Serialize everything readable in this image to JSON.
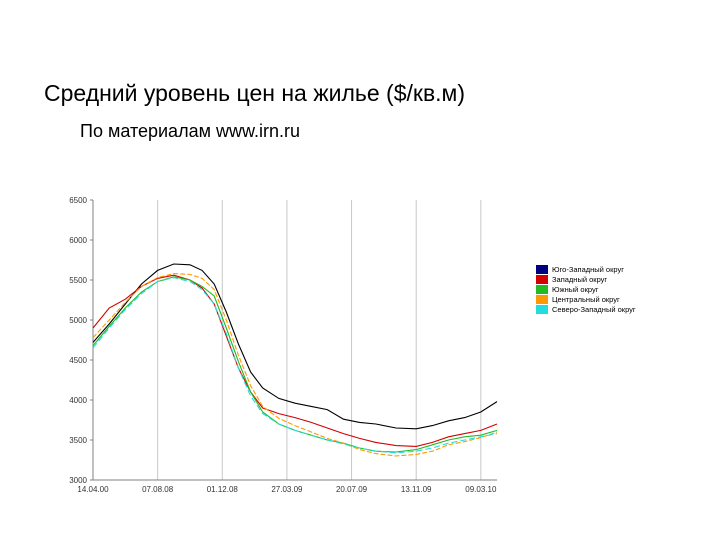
{
  "slide": {
    "title": "Средний уровень цен на жилье ($/кв.м)",
    "subtitle": "По материалам www.irn.ru"
  },
  "chart_data": {
    "type": "line",
    "title": "",
    "xlabel": "",
    "ylabel": "",
    "ylim": [
      3000,
      6500
    ],
    "yticks": [
      3000,
      3500,
      4000,
      4500,
      5000,
      5500,
      6000,
      6500
    ],
    "xlim": [
      0,
      100
    ],
    "xticks": [
      {
        "x": 0,
        "label": "14.04.00"
      },
      {
        "x": 16,
        "label": "07.08.08"
      },
      {
        "x": 32,
        "label": "01.12.08"
      },
      {
        "x": 48,
        "label": "27.03.09"
      },
      {
        "x": 64,
        "label": "20.07.09"
      },
      {
        "x": 80,
        "label": "13.11.09"
      },
      {
        "x": 96,
        "label": "09.03.10"
      }
    ],
    "grid": true,
    "legend_position": "right",
    "series": [
      {
        "name": "Юго-Западный округ",
        "color": "#000000",
        "points": [
          [
            0,
            4720
          ],
          [
            4,
            4950
          ],
          [
            8,
            5200
          ],
          [
            12,
            5450
          ],
          [
            16,
            5620
          ],
          [
            20,
            5700
          ],
          [
            24,
            5690
          ],
          [
            27,
            5620
          ],
          [
            30,
            5450
          ],
          [
            33,
            5100
          ],
          [
            36,
            4700
          ],
          [
            39,
            4350
          ],
          [
            42,
            4150
          ],
          [
            46,
            4020
          ],
          [
            50,
            3960
          ],
          [
            54,
            3920
          ],
          [
            58,
            3880
          ],
          [
            62,
            3760
          ],
          [
            66,
            3720
          ],
          [
            70,
            3700
          ],
          [
            75,
            3650
          ],
          [
            80,
            3640
          ],
          [
            84,
            3680
          ],
          [
            88,
            3740
          ],
          [
            92,
            3780
          ],
          [
            96,
            3850
          ],
          [
            100,
            3980
          ]
        ]
      },
      {
        "name": "Западный округ",
        "color": "#d40000",
        "points": [
          [
            0,
            4900
          ],
          [
            4,
            5150
          ],
          [
            8,
            5260
          ],
          [
            12,
            5420
          ],
          [
            16,
            5520
          ],
          [
            20,
            5560
          ],
          [
            24,
            5500
          ],
          [
            27,
            5400
          ],
          [
            30,
            5200
          ],
          [
            33,
            4800
          ],
          [
            36,
            4400
          ],
          [
            39,
            4100
          ],
          [
            42,
            3900
          ],
          [
            46,
            3830
          ],
          [
            50,
            3780
          ],
          [
            54,
            3720
          ],
          [
            58,
            3650
          ],
          [
            62,
            3580
          ],
          [
            66,
            3520
          ],
          [
            70,
            3470
          ],
          [
            75,
            3430
          ],
          [
            80,
            3420
          ],
          [
            84,
            3470
          ],
          [
            88,
            3540
          ],
          [
            92,
            3580
          ],
          [
            96,
            3620
          ],
          [
            100,
            3700
          ]
        ]
      },
      {
        "name": "Южный округ",
        "color": "#22bb22",
        "points": [
          [
            0,
            4680
          ],
          [
            4,
            4920
          ],
          [
            8,
            5150
          ],
          [
            12,
            5350
          ],
          [
            16,
            5480
          ],
          [
            20,
            5540
          ],
          [
            24,
            5500
          ],
          [
            27,
            5420
          ],
          [
            30,
            5300
          ],
          [
            33,
            4900
          ],
          [
            36,
            4480
          ],
          [
            39,
            4100
          ],
          [
            42,
            3850
          ],
          [
            46,
            3700
          ],
          [
            50,
            3620
          ],
          [
            54,
            3560
          ],
          [
            58,
            3500
          ],
          [
            62,
            3460
          ],
          [
            66,
            3400
          ],
          [
            70,
            3360
          ],
          [
            75,
            3350
          ],
          [
            80,
            3380
          ],
          [
            84,
            3440
          ],
          [
            88,
            3500
          ],
          [
            92,
            3540
          ],
          [
            96,
            3560
          ],
          [
            100,
            3620
          ]
        ]
      },
      {
        "name": "Центральный округ",
        "color": "#ff9900",
        "points": [
          [
            0,
            4780
          ],
          [
            4,
            5000
          ],
          [
            8,
            5220
          ],
          [
            12,
            5420
          ],
          [
            16,
            5530
          ],
          [
            20,
            5580
          ],
          [
            24,
            5570
          ],
          [
            27,
            5520
          ],
          [
            30,
            5380
          ],
          [
            33,
            5000
          ],
          [
            36,
            4560
          ],
          [
            39,
            4180
          ],
          [
            42,
            3920
          ],
          [
            46,
            3770
          ],
          [
            50,
            3680
          ],
          [
            54,
            3600
          ],
          [
            58,
            3520
          ],
          [
            62,
            3460
          ],
          [
            66,
            3380
          ],
          [
            70,
            3330
          ],
          [
            75,
            3300
          ],
          [
            80,
            3320
          ],
          [
            84,
            3360
          ],
          [
            88,
            3440
          ],
          [
            92,
            3480
          ],
          [
            96,
            3530
          ],
          [
            100,
            3600
          ]
        ]
      },
      {
        "name": "Северо-Западный округ",
        "color": "#22dddd",
        "points": [
          [
            0,
            4650
          ],
          [
            4,
            4900
          ],
          [
            8,
            5130
          ],
          [
            12,
            5330
          ],
          [
            16,
            5480
          ],
          [
            20,
            5530
          ],
          [
            24,
            5480
          ],
          [
            27,
            5380
          ],
          [
            30,
            5200
          ],
          [
            33,
            4830
          ],
          [
            36,
            4400
          ],
          [
            39,
            4050
          ],
          [
            42,
            3830
          ],
          [
            46,
            3700
          ],
          [
            50,
            3620
          ],
          [
            54,
            3560
          ],
          [
            58,
            3500
          ],
          [
            62,
            3450
          ],
          [
            66,
            3400
          ],
          [
            70,
            3360
          ],
          [
            75,
            3340
          ],
          [
            80,
            3360
          ],
          [
            84,
            3400
          ],
          [
            88,
            3460
          ],
          [
            92,
            3500
          ],
          [
            96,
            3540
          ],
          [
            100,
            3580
          ]
        ]
      }
    ]
  }
}
